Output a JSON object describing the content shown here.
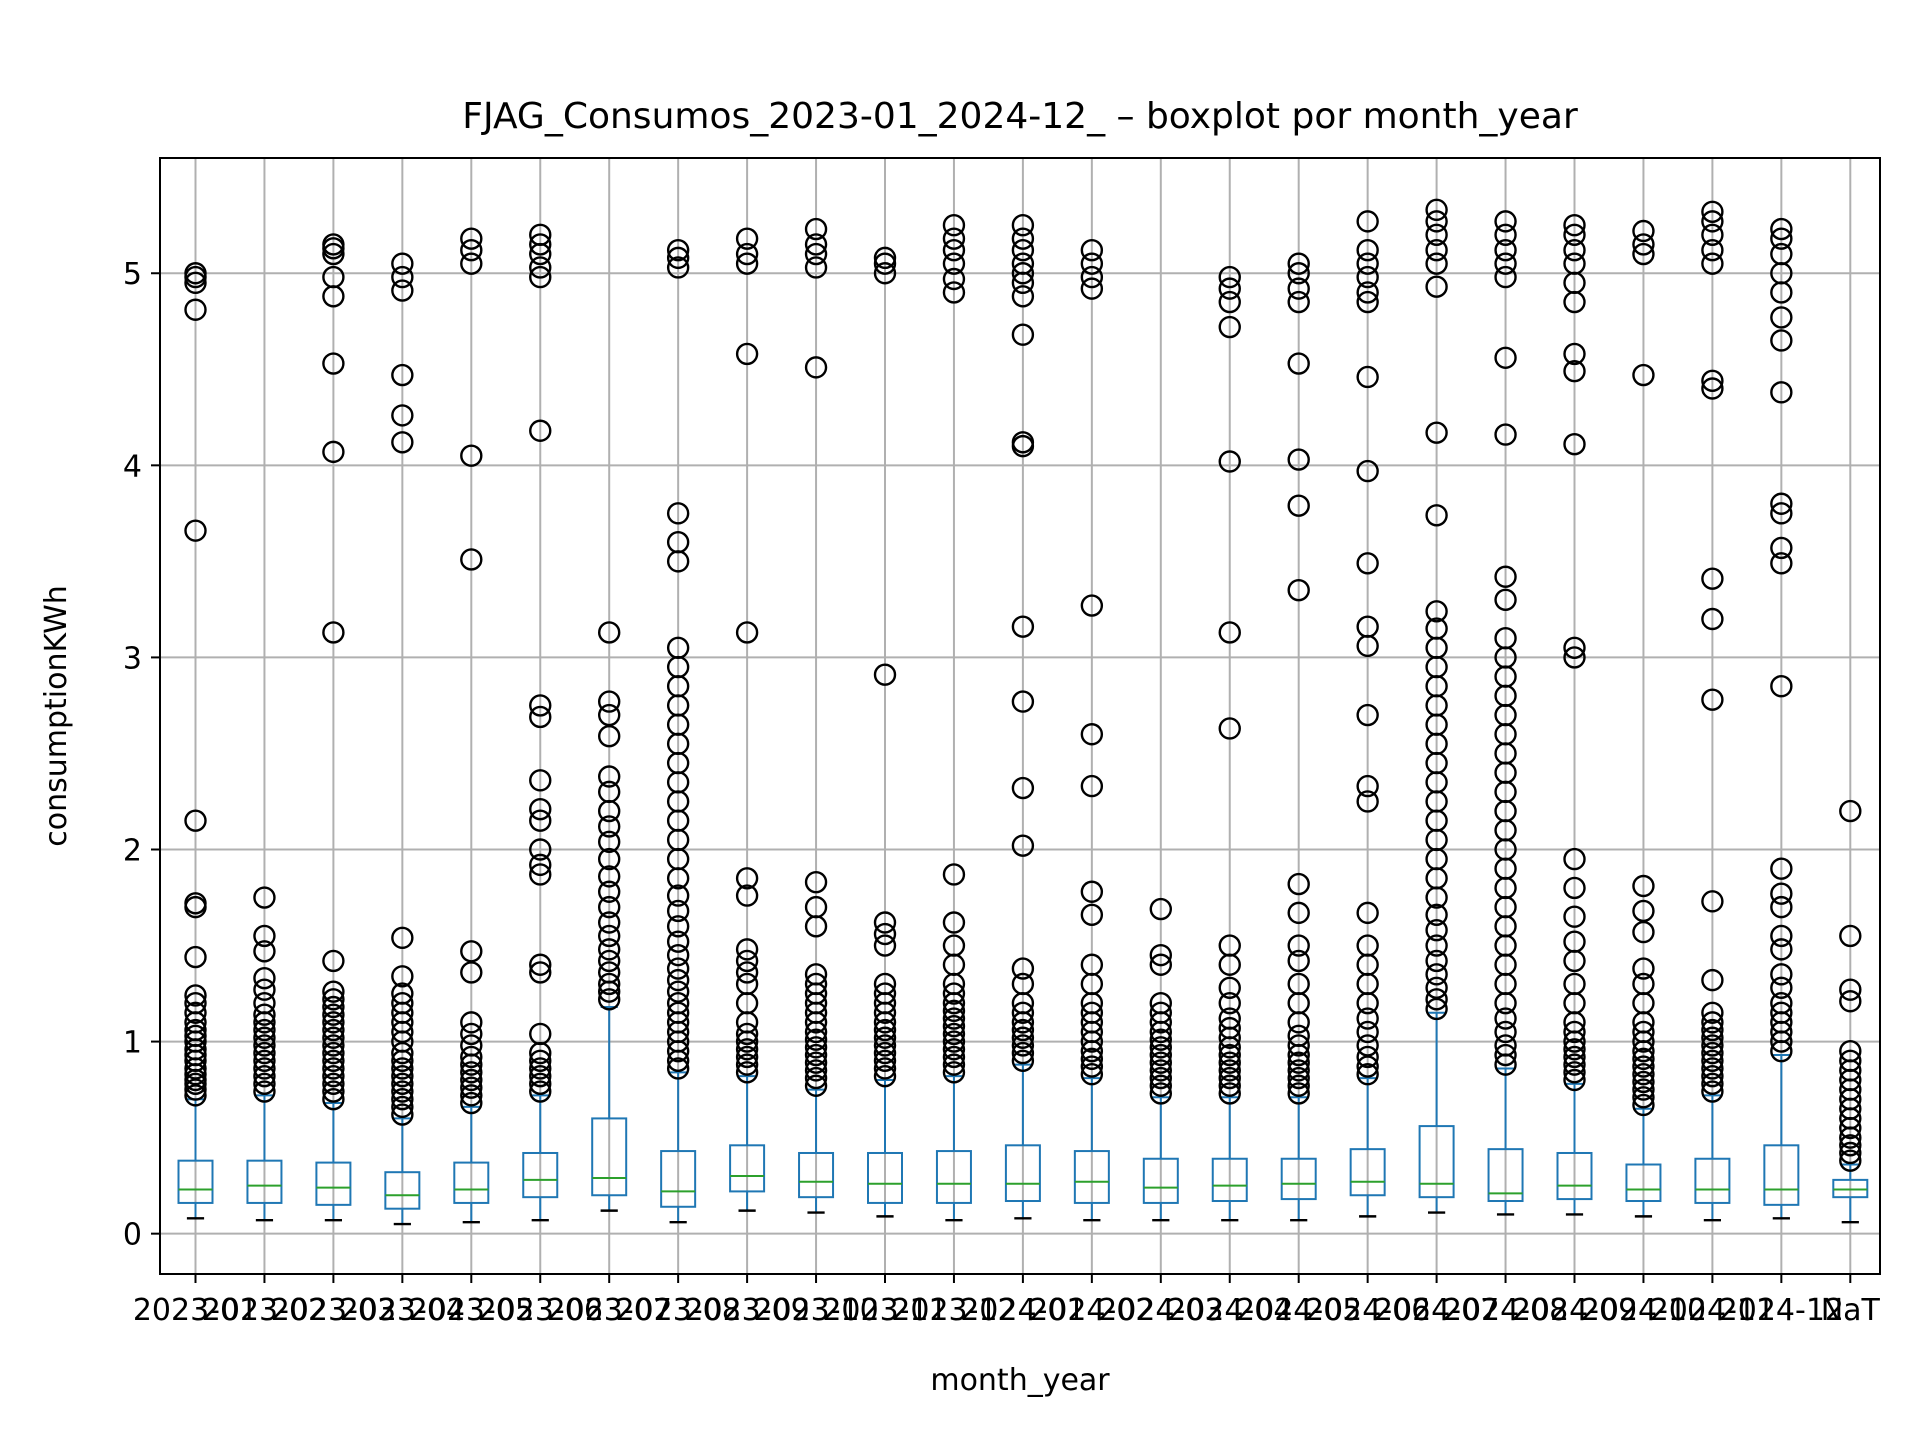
{
  "chart_data": {
    "type": "boxplot",
    "title": "FJAG_Consumos_2023-01_2024-12_ – boxplot por month_year",
    "xlabel": "month_year",
    "ylabel": "consumptionKWh",
    "ylim": [
      -0.21,
      5.6
    ],
    "yticks": [
      0,
      1,
      2,
      3,
      4,
      5
    ],
    "grid": true,
    "categories": [
      "2023-01",
      "2023-02",
      "2023-03",
      "2023-04",
      "2023-05",
      "2023-06",
      "2023-07",
      "2023-08",
      "2023-09",
      "2023-10",
      "2023-11",
      "2023-12",
      "2024-01",
      "2024-02",
      "2024-03",
      "2024-04",
      "2024-05",
      "2024-06",
      "2024-07",
      "2024-08",
      "2024-09",
      "2024-10",
      "2024-11",
      "2024-12",
      "NaT"
    ],
    "colors": {
      "box": "#1f77b4",
      "median": "#2ca02c",
      "flier": "#000000",
      "grid": "#b0b0b0"
    },
    "boxes": [
      {
        "whislo": 0.08,
        "q1": 0.16,
        "med": 0.23,
        "q3": 0.38,
        "whishi": 0.7,
        "fliers": [
          0.72,
          0.75,
          0.78,
          0.8,
          0.83,
          0.86,
          0.9,
          0.93,
          0.96,
          1.0,
          1.03,
          1.06,
          1.1,
          1.15,
          1.2,
          1.24,
          1.44,
          1.7,
          1.72,
          2.15,
          3.66,
          4.81,
          4.95,
          4.98,
          5.0
        ]
      },
      {
        "whislo": 0.07,
        "q1": 0.16,
        "med": 0.25,
        "q3": 0.38,
        "whishi": 0.72,
        "fliers": [
          0.74,
          0.78,
          0.82,
          0.86,
          0.9,
          0.94,
          0.98,
          1.02,
          1.06,
          1.1,
          1.14,
          1.2,
          1.27,
          1.33,
          1.47,
          1.55,
          1.75
        ]
      },
      {
        "whislo": 0.07,
        "q1": 0.15,
        "med": 0.24,
        "q3": 0.37,
        "whishi": 0.68,
        "fliers": [
          0.7,
          0.74,
          0.78,
          0.82,
          0.86,
          0.9,
          0.94,
          0.98,
          1.02,
          1.06,
          1.1,
          1.14,
          1.18,
          1.22,
          1.26,
          1.42,
          3.13,
          4.07,
          4.53,
          4.88,
          4.98,
          5.1,
          5.13,
          5.15
        ]
      },
      {
        "whislo": 0.05,
        "q1": 0.13,
        "med": 0.2,
        "q3": 0.32,
        "whishi": 0.6,
        "fliers": [
          0.62,
          0.66,
          0.7,
          0.74,
          0.78,
          0.82,
          0.86,
          0.9,
          0.94,
          1.0,
          1.05,
          1.1,
          1.15,
          1.2,
          1.25,
          1.34,
          1.54,
          4.12,
          4.26,
          4.47,
          4.91,
          4.98,
          5.05
        ]
      },
      {
        "whislo": 0.06,
        "q1": 0.16,
        "med": 0.23,
        "q3": 0.37,
        "whishi": 0.66,
        "fliers": [
          0.68,
          0.72,
          0.76,
          0.8,
          0.84,
          0.88,
          0.92,
          0.98,
          1.04,
          1.1,
          1.36,
          1.47,
          3.51,
          4.05,
          5.05,
          5.12,
          5.18
        ]
      },
      {
        "whislo": 0.07,
        "q1": 0.19,
        "med": 0.28,
        "q3": 0.42,
        "whishi": 0.72,
        "fliers": [
          0.74,
          0.78,
          0.82,
          0.86,
          0.9,
          0.94,
          1.04,
          1.36,
          1.4,
          1.87,
          1.92,
          2.0,
          2.15,
          2.21,
          2.36,
          2.69,
          2.75,
          4.18,
          4.98,
          5.03,
          5.1,
          5.15,
          5.2
        ]
      },
      {
        "whislo": 0.12,
        "q1": 0.2,
        "med": 0.29,
        "q3": 0.6,
        "whishi": 1.18,
        "fliers": [
          1.22,
          1.26,
          1.3,
          1.36,
          1.42,
          1.48,
          1.55,
          1.62,
          1.7,
          1.78,
          1.86,
          1.95,
          2.04,
          2.12,
          2.2,
          2.3,
          2.38,
          2.59,
          2.7,
          2.77,
          3.13
        ]
      },
      {
        "whislo": 0.06,
        "q1": 0.14,
        "med": 0.22,
        "q3": 0.43,
        "whishi": 0.84,
        "fliers": [
          0.86,
          0.9,
          0.95,
          1.0,
          1.05,
          1.1,
          1.15,
          1.2,
          1.26,
          1.32,
          1.38,
          1.45,
          1.52,
          1.6,
          1.68,
          1.76,
          1.85,
          1.95,
          2.05,
          2.15,
          2.25,
          2.35,
          2.45,
          2.55,
          2.65,
          2.75,
          2.85,
          2.95,
          3.05,
          3.5,
          3.6,
          3.75,
          5.03,
          5.08,
          5.12
        ]
      },
      {
        "whislo": 0.12,
        "q1": 0.22,
        "med": 0.3,
        "q3": 0.46,
        "whishi": 0.82,
        "fliers": [
          0.84,
          0.88,
          0.92,
          0.96,
          1.0,
          1.04,
          1.1,
          1.2,
          1.3,
          1.36,
          1.42,
          1.48,
          1.76,
          1.85,
          3.13,
          4.58,
          5.05,
          5.1,
          5.18
        ]
      },
      {
        "whislo": 0.11,
        "q1": 0.19,
        "med": 0.27,
        "q3": 0.42,
        "whishi": 0.75,
        "fliers": [
          0.77,
          0.81,
          0.85,
          0.89,
          0.93,
          0.97,
          1.01,
          1.05,
          1.1,
          1.15,
          1.2,
          1.25,
          1.3,
          1.35,
          1.6,
          1.7,
          1.83,
          4.51,
          5.03,
          5.1,
          5.15,
          5.23
        ]
      },
      {
        "whislo": 0.09,
        "q1": 0.16,
        "med": 0.26,
        "q3": 0.42,
        "whishi": 0.8,
        "fliers": [
          0.82,
          0.86,
          0.9,
          0.94,
          0.98,
          1.02,
          1.06,
          1.1,
          1.15,
          1.2,
          1.25,
          1.3,
          1.5,
          1.56,
          1.62,
          2.91,
          5.0,
          5.05,
          5.08
        ]
      },
      {
        "whislo": 0.07,
        "q1": 0.16,
        "med": 0.26,
        "q3": 0.43,
        "whishi": 0.82,
        "fliers": [
          0.84,
          0.88,
          0.92,
          0.96,
          1.0,
          1.04,
          1.08,
          1.12,
          1.16,
          1.2,
          1.25,
          1.3,
          1.4,
          1.5,
          1.62,
          1.87,
          4.9,
          4.97,
          5.05,
          5.12,
          5.18,
          5.25
        ]
      },
      {
        "whislo": 0.08,
        "q1": 0.17,
        "med": 0.26,
        "q3": 0.46,
        "whishi": 0.88,
        "fliers": [
          0.9,
          0.94,
          0.98,
          1.02,
          1.06,
          1.1,
          1.15,
          1.2,
          1.3,
          1.38,
          2.02,
          2.32,
          2.77,
          3.16,
          4.1,
          4.12,
          4.68,
          4.88,
          4.95,
          5.0,
          5.05,
          5.12,
          5.18,
          5.25
        ]
      },
      {
        "whislo": 0.07,
        "q1": 0.16,
        "med": 0.27,
        "q3": 0.43,
        "whishi": 0.81,
        "fliers": [
          0.83,
          0.87,
          0.91,
          0.95,
          1.0,
          1.05,
          1.1,
          1.15,
          1.2,
          1.3,
          1.4,
          1.66,
          1.78,
          2.33,
          2.6,
          3.27,
          4.92,
          4.98,
          5.05,
          5.12
        ]
      },
      {
        "whislo": 0.07,
        "q1": 0.16,
        "med": 0.24,
        "q3": 0.39,
        "whishi": 0.71,
        "fliers": [
          0.73,
          0.77,
          0.81,
          0.85,
          0.89,
          0.93,
          0.97,
          1.01,
          1.05,
          1.1,
          1.15,
          1.2,
          1.4,
          1.45,
          1.69
        ]
      },
      {
        "whislo": 0.07,
        "q1": 0.17,
        "med": 0.25,
        "q3": 0.39,
        "whishi": 0.71,
        "fliers": [
          0.73,
          0.77,
          0.81,
          0.85,
          0.89,
          0.93,
          0.97,
          1.02,
          1.07,
          1.12,
          1.2,
          1.28,
          1.4,
          1.5,
          2.63,
          3.13,
          4.02,
          4.72,
          4.85,
          4.92,
          4.98
        ]
      },
      {
        "whislo": 0.07,
        "q1": 0.18,
        "med": 0.26,
        "q3": 0.39,
        "whishi": 0.71,
        "fliers": [
          0.73,
          0.77,
          0.81,
          0.85,
          0.89,
          0.93,
          0.98,
          1.03,
          1.1,
          1.2,
          1.3,
          1.42,
          1.5,
          1.67,
          1.82,
          3.35,
          3.79,
          4.03,
          4.53,
          4.85,
          4.92,
          5.0,
          5.05
        ]
      },
      {
        "whislo": 0.09,
        "q1": 0.2,
        "med": 0.27,
        "q3": 0.44,
        "whishi": 0.81,
        "fliers": [
          0.83,
          0.87,
          0.92,
          0.98,
          1.05,
          1.12,
          1.2,
          1.3,
          1.4,
          1.5,
          1.67,
          2.25,
          2.33,
          2.7,
          3.06,
          3.16,
          3.49,
          3.97,
          4.46,
          4.85,
          4.9,
          4.98,
          5.05,
          5.12,
          5.27
        ]
      },
      {
        "whislo": 0.11,
        "q1": 0.19,
        "med": 0.26,
        "q3": 0.56,
        "whishi": 1.15,
        "fliers": [
          1.17,
          1.22,
          1.28,
          1.35,
          1.42,
          1.5,
          1.58,
          1.66,
          1.75,
          1.85,
          1.95,
          2.05,
          2.15,
          2.25,
          2.35,
          2.45,
          2.55,
          2.65,
          2.75,
          2.85,
          2.95,
          3.05,
          3.15,
          3.24,
          3.74,
          4.17,
          4.93,
          5.05,
          5.12,
          5.2,
          5.27,
          5.33
        ]
      },
      {
        "whislo": 0.1,
        "q1": 0.17,
        "med": 0.21,
        "q3": 0.44,
        "whishi": 0.86,
        "fliers": [
          0.88,
          0.93,
          0.98,
          1.05,
          1.12,
          1.2,
          1.3,
          1.4,
          1.5,
          1.6,
          1.7,
          1.8,
          1.9,
          2.0,
          2.1,
          2.2,
          2.3,
          2.4,
          2.5,
          2.6,
          2.7,
          2.8,
          2.9,
          3.0,
          3.1,
          3.3,
          3.42,
          4.16,
          4.56,
          4.98,
          5.05,
          5.12,
          5.2,
          5.27
        ]
      },
      {
        "whislo": 0.1,
        "q1": 0.18,
        "med": 0.25,
        "q3": 0.42,
        "whishi": 0.78,
        "fliers": [
          0.8,
          0.84,
          0.88,
          0.92,
          0.96,
          1.0,
          1.05,
          1.1,
          1.2,
          1.3,
          1.42,
          1.52,
          1.65,
          1.8,
          1.95,
          3.0,
          3.05,
          4.11,
          4.49,
          4.58,
          4.85,
          4.95,
          5.05,
          5.12,
          5.2,
          5.25
        ]
      },
      {
        "whislo": 0.09,
        "q1": 0.17,
        "med": 0.23,
        "q3": 0.36,
        "whishi": 0.65,
        "fliers": [
          0.67,
          0.71,
          0.75,
          0.79,
          0.83,
          0.87,
          0.91,
          0.95,
          1.0,
          1.05,
          1.1,
          1.2,
          1.3,
          1.38,
          1.57,
          1.68,
          1.81,
          4.47,
          5.1,
          5.15,
          5.22
        ]
      },
      {
        "whislo": 0.07,
        "q1": 0.16,
        "med": 0.23,
        "q3": 0.39,
        "whishi": 0.72,
        "fliers": [
          0.74,
          0.78,
          0.82,
          0.86,
          0.9,
          0.94,
          0.98,
          1.02,
          1.06,
          1.1,
          1.15,
          1.32,
          1.73,
          2.78,
          3.2,
          3.41,
          4.4,
          4.44,
          5.05,
          5.12,
          5.2,
          5.27,
          5.32
        ]
      },
      {
        "whislo": 0.08,
        "q1": 0.15,
        "med": 0.23,
        "q3": 0.46,
        "whishi": 0.93,
        "fliers": [
          0.95,
          1.0,
          1.05,
          1.1,
          1.15,
          1.2,
          1.28,
          1.35,
          1.48,
          1.55,
          1.7,
          1.77,
          1.9,
          2.85,
          3.49,
          3.57,
          3.75,
          3.8,
          4.38,
          4.65,
          4.77,
          4.9,
          5.0,
          5.1,
          5.18,
          5.23
        ]
      },
      {
        "whislo": 0.06,
        "q1": 0.19,
        "med": 0.23,
        "q3": 0.28,
        "whishi": 0.36,
        "fliers": [
          0.38,
          0.42,
          0.46,
          0.5,
          0.55,
          0.6,
          0.65,
          0.7,
          0.75,
          0.8,
          0.85,
          0.9,
          0.95,
          1.21,
          1.27,
          1.55,
          2.2
        ]
      }
    ]
  }
}
